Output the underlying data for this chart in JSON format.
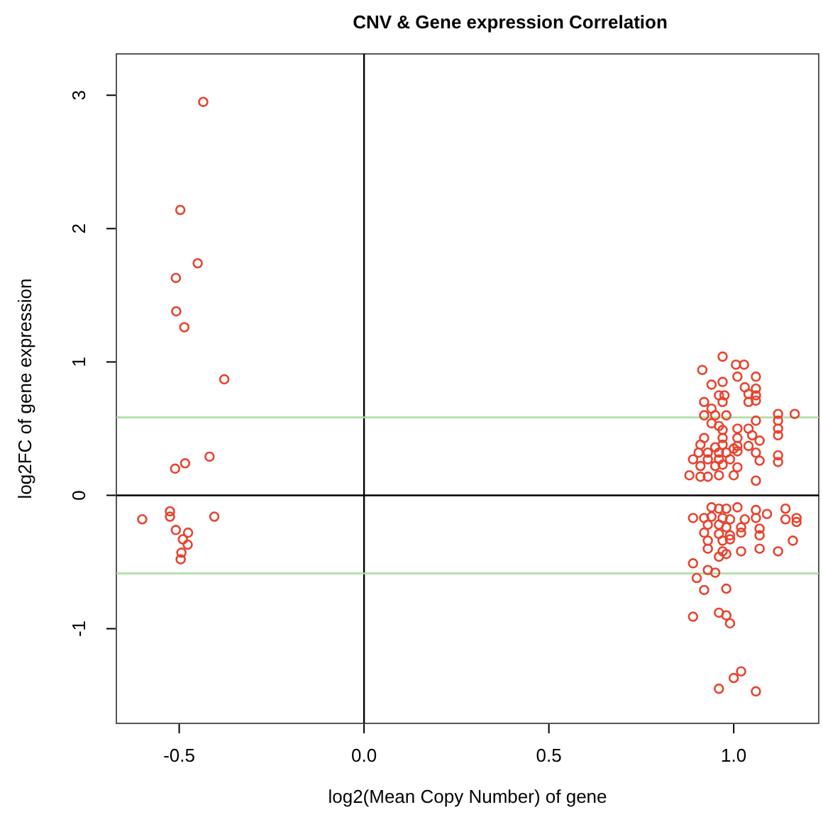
{
  "chart_data": {
    "type": "scatter",
    "title": "CNV & Gene expression Correlation",
    "xlabel": "log2(Mean Copy Number) of gene",
    "ylabel": "log2FC of gene expression",
    "xlim": [
      -0.67,
      1.23
    ],
    "ylim": [
      -1.71,
      3.31
    ],
    "xticks": [
      {
        "value": -0.5,
        "label": "-0.5"
      },
      {
        "value": 0,
        "label": "0.0"
      },
      {
        "value": 0.5,
        "label": "0.5"
      },
      {
        "value": 1,
        "label": "1.0"
      }
    ],
    "yticks": [
      -1,
      0,
      1,
      2,
      3
    ],
    "grid": false,
    "marker": "circle",
    "ref_lines": [
      {
        "axis": "x",
        "value": 0,
        "label": null,
        "color": "#000000"
      },
      {
        "axis": "y",
        "value": 0,
        "label": null,
        "color": "#000000"
      },
      {
        "axis": "y",
        "value": 0.585,
        "label": null,
        "color": "#a8dca0"
      },
      {
        "axis": "y",
        "value": -0.585,
        "label": null,
        "color": "#a8dca0"
      }
    ],
    "series": [
      {
        "color": "#e8432f",
        "x": [
          -0.435,
          -0.497,
          -0.45,
          -0.509,
          -0.508,
          -0.486,
          -0.378,
          -0.418,
          -0.484,
          -0.511,
          -0.6,
          -0.525,
          -0.525,
          -0.405,
          -0.509,
          -0.476,
          -0.49,
          -0.477,
          -0.494,
          -0.496,
          0.97,
          0.915,
          1.006,
          1.028,
          1.01,
          1.06,
          0.94,
          0.97,
          1.03,
          1.06,
          0.96,
          0.975,
          1.04,
          1.06,
          0.92,
          0.97,
          1.04,
          1.06,
          0.94,
          0.92,
          0.95,
          0.98,
          1.12,
          1.12,
          1.165,
          1.06,
          0.94,
          0.96,
          0.97,
          1.01,
          1.04,
          1.12,
          1.12,
          0.92,
          0.97,
          1.01,
          1.05,
          1.07,
          0.91,
          0.95,
          0.97,
          1.0,
          1.01,
          1.04,
          0.905,
          0.93,
          0.96,
          0.98,
          1.01,
          1.06,
          1.12,
          1.12,
          0.89,
          0.93,
          0.96,
          0.99,
          1.07,
          0.91,
          0.95,
          0.97,
          1.01,
          0.88,
          0.91,
          0.93,
          0.96,
          1.0,
          1.06,
          0.94,
          0.96,
          0.98,
          1.01,
          1.06,
          1.09,
          1.14,
          0.89,
          0.92,
          0.94,
          0.97,
          0.99,
          1.03,
          1.06,
          1.14,
          1.17,
          1.17,
          0.93,
          0.96,
          0.98,
          1.02,
          1.07,
          0.92,
          0.96,
          0.99,
          1.02,
          1.07,
          0.93,
          0.97,
          0.99,
          1.16,
          0.93,
          0.97,
          1.02,
          1.07,
          1.12,
          0.96,
          0.98,
          0.89,
          0.93,
          0.9,
          0.95,
          0.92,
          0.98,
          0.89,
          0.96,
          0.98,
          0.99,
          1.02,
          1.0,
          0.96,
          1.06
        ],
        "values": [
          2.95,
          2.14,
          1.74,
          1.63,
          1.38,
          1.26,
          0.87,
          0.29,
          0.24,
          0.2,
          -0.18,
          -0.12,
          -0.16,
          -0.16,
          -0.26,
          -0.28,
          -0.33,
          -0.37,
          -0.43,
          -0.48,
          1.04,
          0.94,
          0.98,
          0.98,
          0.89,
          0.89,
          0.83,
          0.85,
          0.81,
          0.8,
          0.75,
          0.75,
          0.76,
          0.75,
          0.7,
          0.7,
          0.7,
          0.71,
          0.65,
          0.6,
          0.6,
          0.6,
          0.61,
          0.56,
          0.61,
          0.56,
          0.54,
          0.52,
          0.49,
          0.5,
          0.5,
          0.5,
          0.45,
          0.43,
          0.43,
          0.43,
          0.45,
          0.41,
          0.38,
          0.36,
          0.38,
          0.35,
          0.37,
          0.37,
          0.32,
          0.32,
          0.32,
          0.32,
          0.33,
          0.32,
          0.3,
          0.25,
          0.27,
          0.27,
          0.27,
          0.27,
          0.26,
          0.22,
          0.22,
          0.23,
          0.21,
          0.15,
          0.14,
          0.14,
          0.15,
          0.15,
          0.11,
          -0.09,
          -0.1,
          -0.1,
          -0.09,
          -0.11,
          -0.14,
          -0.1,
          -0.17,
          -0.17,
          -0.16,
          -0.17,
          -0.18,
          -0.18,
          -0.17,
          -0.18,
          -0.17,
          -0.2,
          -0.22,
          -0.22,
          -0.24,
          -0.24,
          -0.25,
          -0.28,
          -0.29,
          -0.3,
          -0.28,
          -0.3,
          -0.34,
          -0.34,
          -0.33,
          -0.34,
          -0.4,
          -0.42,
          -0.42,
          -0.4,
          -0.42,
          -0.46,
          -0.44,
          -0.51,
          -0.56,
          -0.62,
          -0.58,
          -0.71,
          -0.7,
          -0.91,
          -0.88,
          -0.9,
          -0.96,
          -1.32,
          -1.37,
          -1.45,
          -1.47
        ]
      }
    ]
  }
}
